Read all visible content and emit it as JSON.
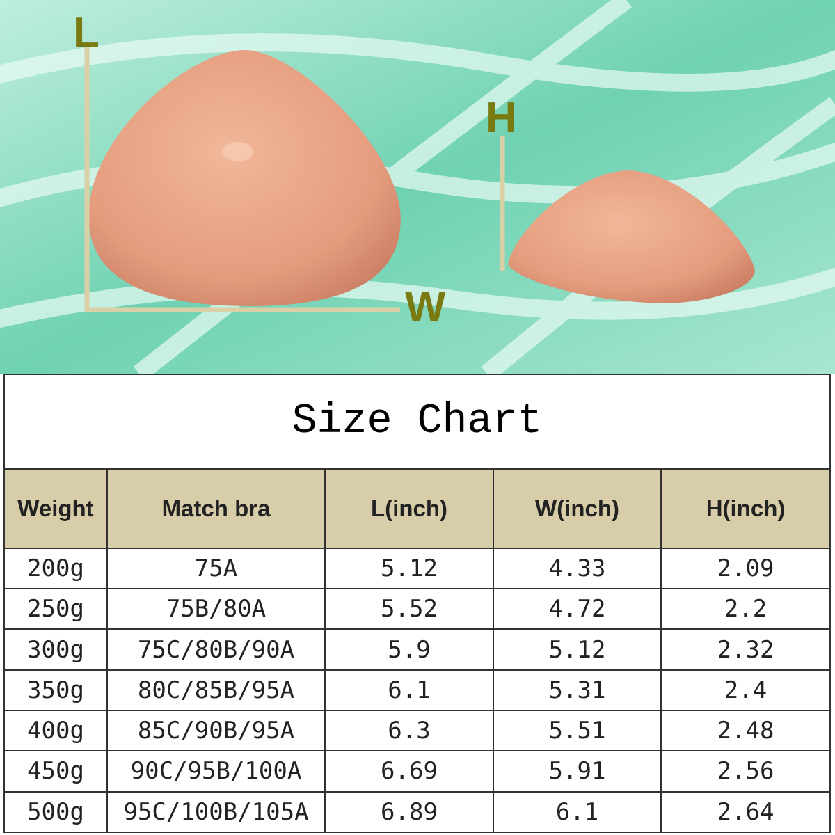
{
  "header": {
    "labels": {
      "length": "L",
      "height": "H",
      "width": "W"
    }
  },
  "table": {
    "title": "Size Chart",
    "columns": [
      "Weight",
      "Match bra",
      "L(inch)",
      "W(inch)",
      "H(inch)"
    ],
    "rows": [
      [
        "200g",
        "75A",
        "5.12",
        "4.33",
        "2.09"
      ],
      [
        "250g",
        "75B/80A",
        "5.52",
        "4.72",
        "2.2"
      ],
      [
        "300g",
        "75C/80B/90A",
        "5.9",
        "5.12",
        "2.32"
      ],
      [
        "350g",
        "80C/85B/95A",
        "6.1",
        "5.31",
        "2.4"
      ],
      [
        "400g",
        "85C/90B/95A",
        "6.3",
        "5.51",
        "2.48"
      ],
      [
        "450g",
        "90C/95B/100A",
        "6.69",
        "5.91",
        "2.56"
      ],
      [
        "500g",
        "95C/100B/105A",
        "6.89",
        "6.1",
        "2.64"
      ]
    ]
  }
}
